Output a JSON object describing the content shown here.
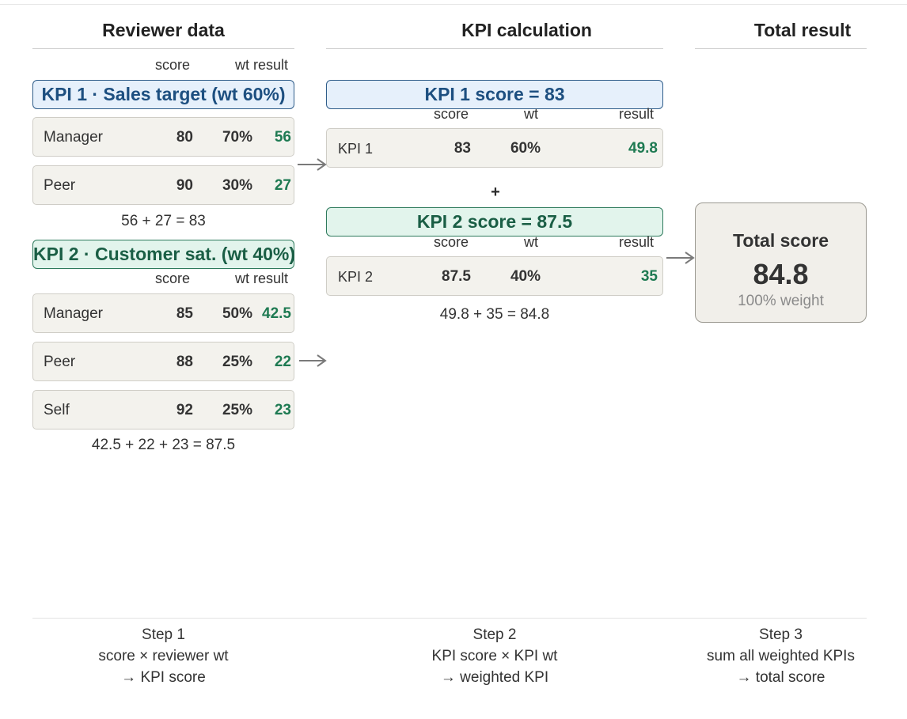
{
  "columns": {
    "reviewer": "Reviewer data",
    "kpi_calc": "KPI calculation",
    "total": "Total result"
  },
  "reviewer": {
    "kpi1": {
      "headers": {
        "score": "score",
        "wt": "wt",
        "result": "result"
      },
      "banner": "KPI 1 · Sales target (wt 60%)",
      "rows": [
        {
          "label": "Manager",
          "score": "80",
          "wt": "70%",
          "result": "56"
        },
        {
          "label": "Peer",
          "score": "90",
          "wt": "30%",
          "result": "27"
        }
      ],
      "sum": "56 + 27 = 83"
    },
    "kpi2": {
      "headers": {
        "score": "score",
        "wt": "wt",
        "result": "result"
      },
      "banner": "KPI 2 · Customer sat. (wt 40%)",
      "rows": [
        {
          "label": "Manager",
          "score": "85",
          "wt": "50%",
          "result": "42.5"
        },
        {
          "label": "Peer",
          "score": "88",
          "wt": "25%",
          "result": "22"
        },
        {
          "label": "Self",
          "score": "92",
          "wt": "25%",
          "result": "23"
        }
      ],
      "sum": "42.5 + 22 + 23 = 87.5"
    }
  },
  "calc": {
    "kpi1": {
      "banner": "KPI 1 score = 83",
      "headers": {
        "score": "score",
        "wt": "wt",
        "result": "result"
      },
      "row": {
        "label": "KPI 1",
        "score": "83",
        "wt": "60%",
        "result": "49.8"
      }
    },
    "plus": "+",
    "kpi2": {
      "banner": "KPI 2 score = 87.5",
      "headers": {
        "score": "score",
        "wt": "wt",
        "result": "result"
      },
      "row": {
        "label": "KPI 2",
        "score": "87.5",
        "wt": "40%",
        "result": "35"
      }
    },
    "sum": "49.8 + 35 = 84.8"
  },
  "total": {
    "title": "Total score",
    "value": "84.8",
    "weight": "100% weight"
  },
  "steps": [
    {
      "title": "Step 1",
      "line1": "score × reviewer wt",
      "line2": "→ KPI score"
    },
    {
      "title": "Step 2",
      "line1": "KPI score × KPI wt",
      "line2": "→ weighted KPI"
    },
    {
      "title": "Step 3",
      "line1": "sum all weighted KPIs",
      "line2": "→ total score"
    }
  ],
  "colors": {
    "kpi1_accent": "#1d4f80",
    "kpi2_accent": "#1a5e45",
    "result_green": "#1e7a52"
  }
}
